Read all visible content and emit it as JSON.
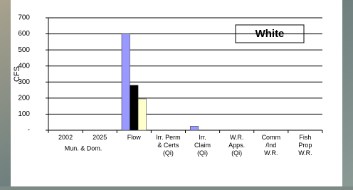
{
  "chart_data": {
    "type": "bar",
    "title": "White",
    "y_label": "CFS",
    "group_label": "Mun. & Dom.",
    "categories": [
      [
        "2002"
      ],
      [
        "2025"
      ],
      [
        "Flow"
      ],
      [
        "Irr. Perm",
        "& Certs",
        "(Qi)"
      ],
      [
        "Irr.",
        "Claim",
        "(Qi)"
      ],
      [
        "W.R.",
        "Apps.",
        "(Qi)"
      ],
      [
        "Comm",
        "/Ind",
        "W.R."
      ],
      [
        "Fish",
        "Prop",
        "W.R."
      ]
    ],
    "series": [
      {
        "color": "#9999ff",
        "values": [
          null,
          null,
          600,
          null,
          25,
          null,
          null,
          null
        ]
      },
      {
        "color": "#000000",
        "values": [
          null,
          null,
          280,
          null,
          null,
          null,
          null,
          null
        ]
      },
      {
        "color": "#ffffcc",
        "values": [
          null,
          null,
          195,
          null,
          null,
          null,
          null,
          null
        ]
      }
    ],
    "ylim": [
      0,
      700
    ],
    "yticks": [
      {
        "value": 0,
        "label": "-"
      },
      100,
      200,
      300,
      400,
      500,
      600,
      700
    ],
    "grid": true
  }
}
